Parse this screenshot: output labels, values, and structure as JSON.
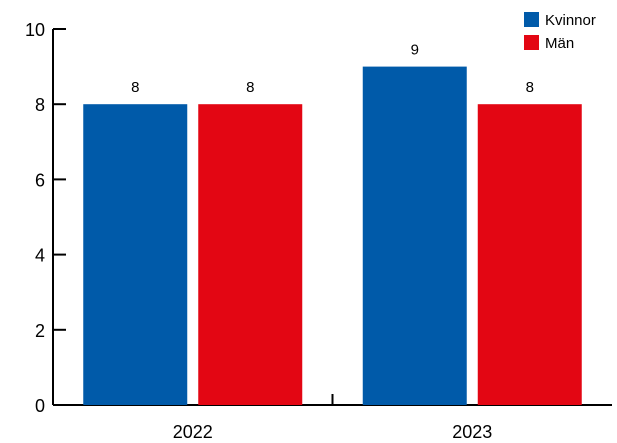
{
  "chart_data": {
    "type": "bar",
    "categories": [
      "2022",
      "2023"
    ],
    "series": [
      {
        "name": "Kvinnor",
        "values": [
          8,
          9
        ],
        "color": "#005AA9"
      },
      {
        "name": "Män",
        "values": [
          8,
          8
        ],
        "color": "#E30613"
      }
    ],
    "ylim": [
      0,
      10
    ],
    "yticks": [
      0,
      2,
      4,
      6,
      8,
      10
    ],
    "legend_position": "top-right",
    "grid": false,
    "title": "",
    "xlabel": "",
    "ylabel": ""
  }
}
